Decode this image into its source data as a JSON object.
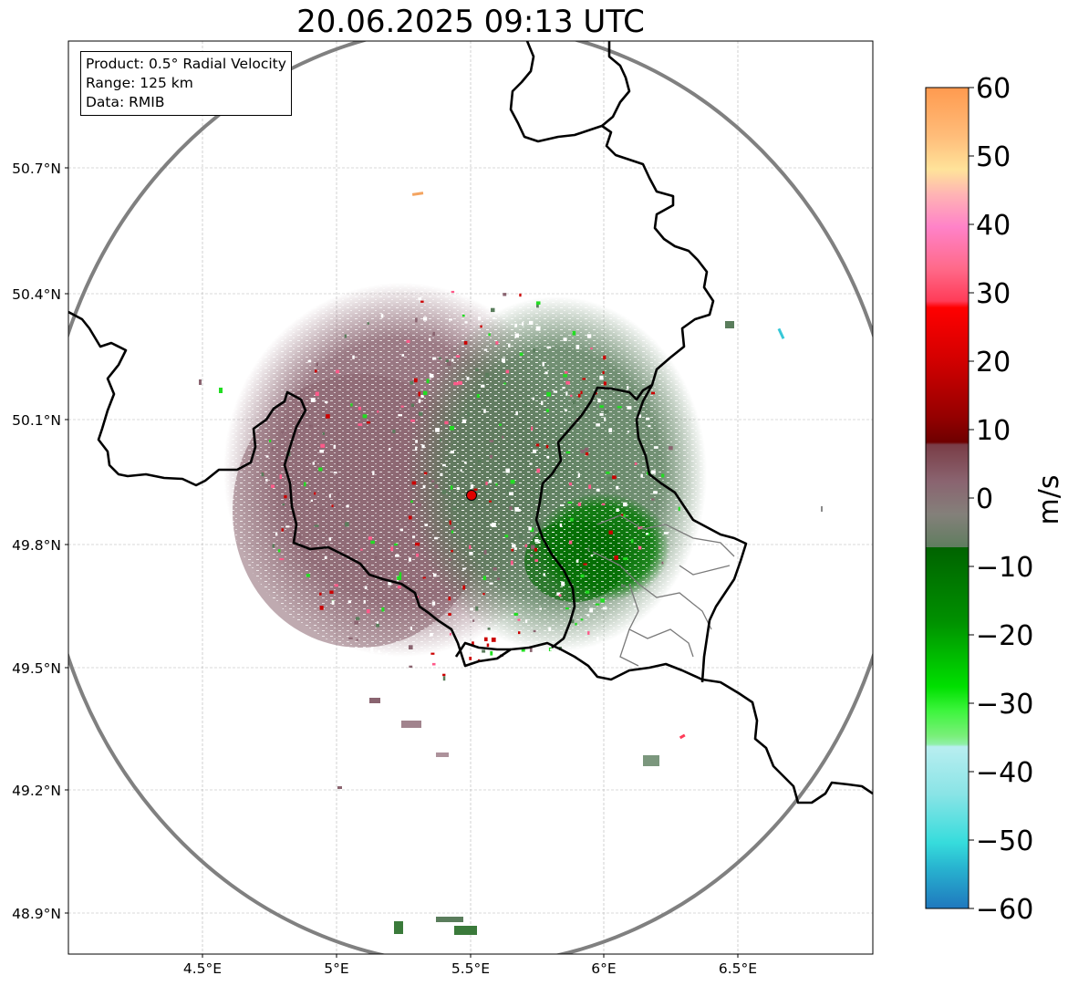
{
  "title": "20.06.2025 09:13 UTC",
  "info": {
    "product": "Product: 0.5° Radial Velocity",
    "range": "Range: 125 km",
    "source": "Data: RMIB"
  },
  "map": {
    "lon_ticks": [
      "4.5°E",
      "5°E",
      "5.5°E",
      "6°E",
      "6.5°E"
    ],
    "lat_ticks": [
      "50.7°N",
      "50.4°N",
      "50.1°N",
      "49.8°N",
      "49.5°N",
      "49.2°N",
      "48.9°N"
    ],
    "radar_site": {
      "lon": 5.5,
      "lat": 49.91
    }
  },
  "colorbar": {
    "label": "m/s",
    "ticks": [
      "60",
      "50",
      "40",
      "30",
      "20",
      "10",
      "0",
      "−10",
      "−20",
      "−30",
      "−40",
      "−50",
      "−60"
    ],
    "range": [
      -60,
      60
    ]
  },
  "colors": {
    "receding": "#8a6470",
    "approaching": "#5a7d5c",
    "strong_approaching": "#006b00",
    "range_ring": "#808080",
    "border": "#000000",
    "radar_marker": "#e00000"
  }
}
